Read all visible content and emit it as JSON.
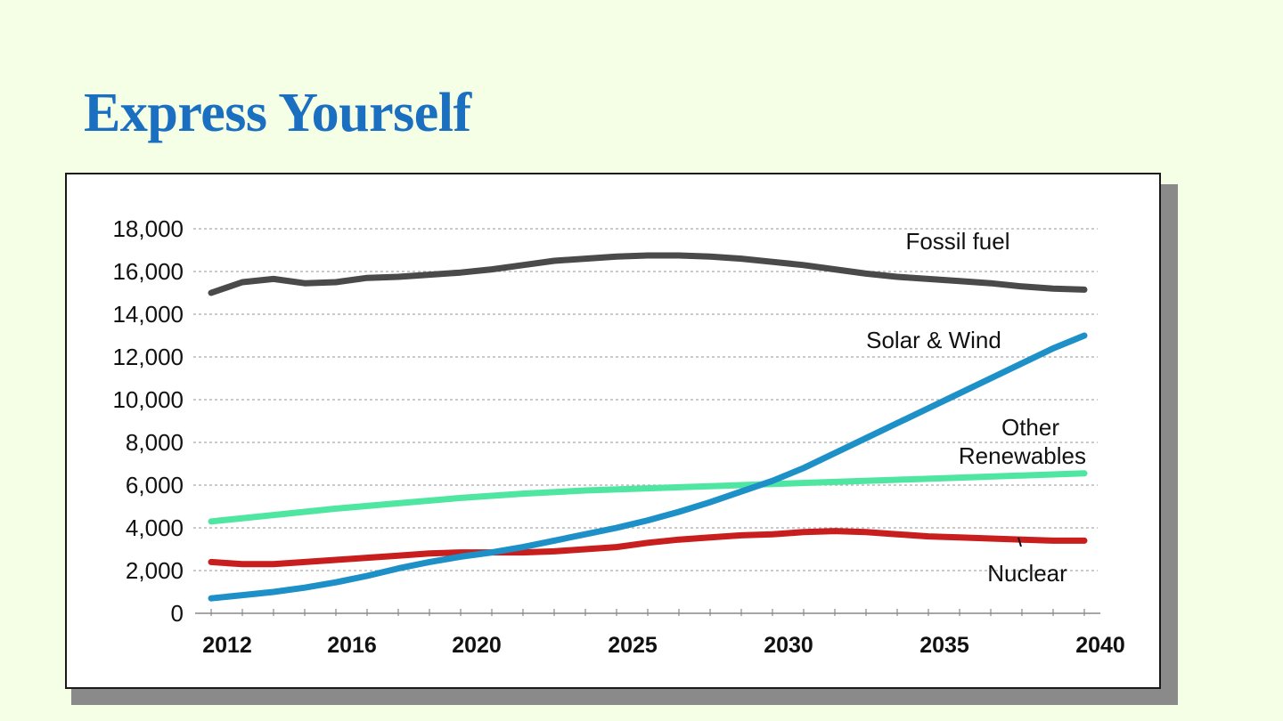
{
  "slide": {
    "title": "Express Yourself"
  },
  "colors": {
    "background": "#f5ffe6",
    "title": "#1a6fc0",
    "fossil": "#4a4a4a",
    "solar_wind": "#1e90c8",
    "other_renewables": "#4ee6a0",
    "nuclear": "#c81e1e",
    "grid": "#aaaaaa"
  },
  "chart_data": {
    "type": "line",
    "xlim": [
      2012,
      2040
    ],
    "ylim": [
      0,
      18000
    ],
    "grid": true,
    "x_ticks": [
      2012,
      2016,
      2020,
      2025,
      2030,
      2035,
      2040
    ],
    "x_tick_labels": [
      "2012",
      "2016",
      "2020",
      "2025",
      "2030",
      "2035",
      "2040"
    ],
    "y_ticks": [
      0,
      2000,
      4000,
      6000,
      8000,
      10000,
      12000,
      14000,
      16000,
      18000
    ],
    "y_tick_labels": [
      "0",
      "2,000",
      "4,000",
      "6,000",
      "8,000",
      "10,000",
      "12,000",
      "14,000",
      "16,000",
      "18,000"
    ],
    "series": [
      {
        "name": "Fossil fuel",
        "label_lines": [
          "Fossil fuel"
        ],
        "color_key": "fossil",
        "x": [
          2012,
          2013,
          2014,
          2015,
          2016,
          2017,
          2018,
          2019,
          2020,
          2021,
          2022,
          2023,
          2024,
          2025,
          2026,
          2027,
          2028,
          2029,
          2030,
          2031,
          2032,
          2033,
          2034,
          2035,
          2036,
          2037,
          2038,
          2039,
          2040
        ],
        "values": [
          15000,
          15500,
          15650,
          15450,
          15500,
          15700,
          15750,
          15850,
          15950,
          16100,
          16300,
          16500,
          16600,
          16700,
          16750,
          16750,
          16700,
          16600,
          16450,
          16300,
          16100,
          15900,
          15750,
          15650,
          15550,
          15450,
          15300,
          15200,
          15150
        ]
      },
      {
        "name": "Solar & Wind",
        "label_lines": [
          "Solar & Wind"
        ],
        "color_key": "solar_wind",
        "x": [
          2012,
          2013,
          2014,
          2015,
          2016,
          2017,
          2018,
          2019,
          2020,
          2021,
          2022,
          2023,
          2024,
          2025,
          2026,
          2027,
          2028,
          2029,
          2030,
          2031,
          2032,
          2033,
          2034,
          2035,
          2036,
          2037,
          2038,
          2039,
          2040
        ],
        "values": [
          700,
          850,
          1000,
          1200,
          1450,
          1750,
          2100,
          2400,
          2650,
          2850,
          3100,
          3400,
          3700,
          4000,
          4350,
          4750,
          5200,
          5700,
          6200,
          6800,
          7500,
          8200,
          8900,
          9600,
          10300,
          11000,
          11700,
          12400,
          13000
        ]
      },
      {
        "name": "Other Renewables",
        "label_lines": [
          "Other",
          "Renewables"
        ],
        "color_key": "other_renewables",
        "x": [
          2012,
          2014,
          2016,
          2018,
          2020,
          2022,
          2024,
          2026,
          2028,
          2030,
          2032,
          2034,
          2036,
          2038,
          2040
        ],
        "values": [
          4300,
          4600,
          4900,
          5150,
          5400,
          5600,
          5750,
          5850,
          5950,
          6050,
          6150,
          6250,
          6350,
          6450,
          6550
        ]
      },
      {
        "name": "Nuclear",
        "label_lines": [
          "Nuclear"
        ],
        "color_key": "nuclear",
        "x": [
          2012,
          2013,
          2014,
          2015,
          2016,
          2017,
          2018,
          2019,
          2020,
          2021,
          2022,
          2023,
          2024,
          2025,
          2026,
          2027,
          2028,
          2029,
          2030,
          2031,
          2032,
          2033,
          2034,
          2035,
          2036,
          2037,
          2038,
          2039,
          2040
        ],
        "values": [
          2400,
          2300,
          2300,
          2400,
          2500,
          2600,
          2700,
          2800,
          2850,
          2850,
          2850,
          2900,
          3000,
          3100,
          3300,
          3450,
          3550,
          3650,
          3700,
          3800,
          3850,
          3800,
          3700,
          3600,
          3550,
          3500,
          3450,
          3400,
          3400
        ]
      }
    ]
  }
}
